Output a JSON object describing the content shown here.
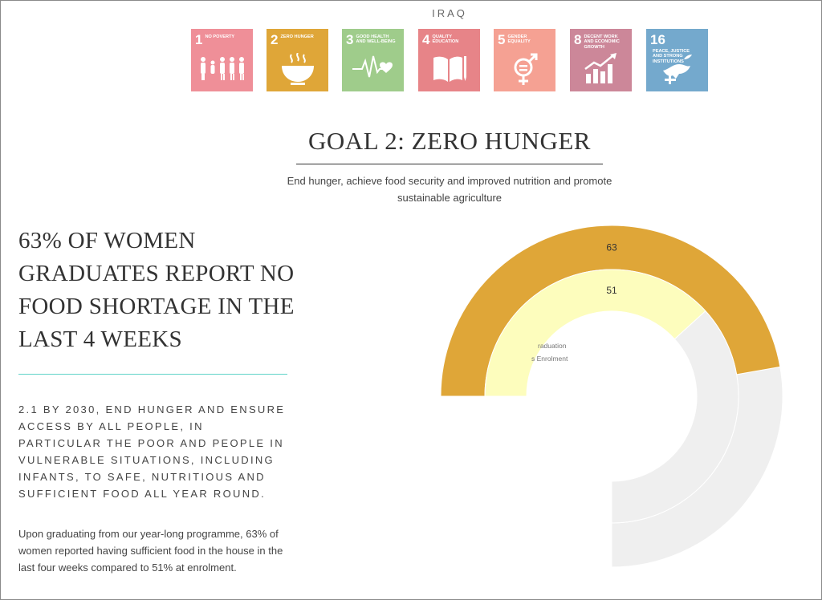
{
  "header": {
    "country": "IRAQ"
  },
  "sdg_tiles": [
    {
      "number": "1",
      "label": "No Poverty",
      "color": "#ef8f98",
      "icon": "people-icon"
    },
    {
      "number": "2",
      "label": "Zero Hunger",
      "color": "#dfa638",
      "icon": "bowl-icon"
    },
    {
      "number": "3",
      "label": "Good Health and Well-Being",
      "color": "#9fcc8b",
      "icon": "heartbeat-icon"
    },
    {
      "number": "4",
      "label": "Quality Education",
      "color": "#e78488",
      "icon": "book-icon"
    },
    {
      "number": "5",
      "label": "Gender Equality",
      "color": "#f5a193",
      "icon": "gender-icon"
    },
    {
      "number": "8",
      "label": "Decent Work and Economic Growth",
      "color": "#cc8799",
      "icon": "growth-chart-icon"
    },
    {
      "number": "16",
      "label": "Peace, Justice and Strong Institutions",
      "color": "#74a9cd",
      "icon": "dove-icon"
    }
  ],
  "goal": {
    "title": "GOAL 2: ZERO HUNGER",
    "subtitle": "End hunger, achieve food security and improved nutrition and promote sustainable agriculture"
  },
  "headline": "63% of women graduates report no food shortage in the last 4 weeks",
  "target_text": "2.1 By 2030, end hunger and ensure access by all people, in particular the poor and people in vulnerable situations, including infants, to safe, nutritious and sufficient food all year round.",
  "body_text": "Upon graduating from our year-long programme, 63% of women reported having sufficient food in the house in the last four weeks compared to 51% at enrolment.",
  "chart_data": {
    "type": "radial-bar",
    "max": 100,
    "series": [
      {
        "name": "Graduation",
        "value": 63,
        "label": "63",
        "color": "#dfa638"
      },
      {
        "name": "Enrolment",
        "value": 51,
        "label": "51",
        "color": "#fdfdbd"
      }
    ],
    "track_color": "#efefef",
    "legend_visible_fragments": [
      "raduation",
      "s Enrolment"
    ]
  }
}
